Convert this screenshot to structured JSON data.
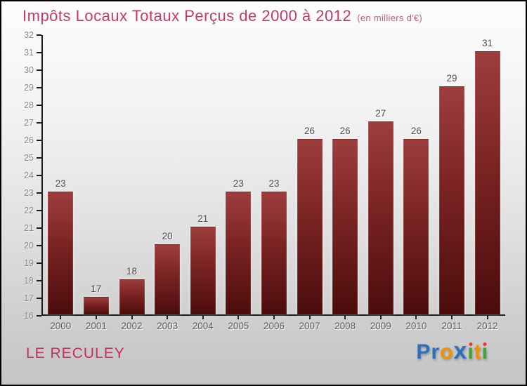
{
  "header": {
    "title": "Impôts Locaux Totaux Perçus de 2000 à 2012",
    "suffix": "(en milliers d'€)"
  },
  "chart_data": {
    "type": "bar",
    "title": "Impôts Locaux Totaux Perçus de 2000 à 2012",
    "subtitle": "(en milliers d'€)",
    "categories": [
      "2000",
      "2001",
      "2002",
      "2003",
      "2004",
      "2005",
      "2006",
      "2007",
      "2008",
      "2009",
      "2010",
      "2011",
      "2012"
    ],
    "values": [
      23,
      17,
      18,
      20,
      21,
      23,
      23,
      26,
      26,
      27,
      26,
      29,
      31
    ],
    "ylim": [
      16,
      32
    ],
    "ytick_step": 1,
    "grid": false,
    "legend": "none",
    "value_labels": true,
    "bar_color_top": "#9e3d3d",
    "bar_color_bottom": "#4c0c0c",
    "axis_color": "#1a1a1a",
    "ytick_label_color": "#8a8a8a",
    "xtick_label_color": "#5e5e5e",
    "value_label_color": "#4d4d4d"
  },
  "footer": {
    "location": "LE RECULEY",
    "logo": {
      "name": "Proxiti",
      "letters": [
        {
          "ch": "P",
          "color": "#2d6fc1"
        },
        {
          "ch": "r",
          "color": "#2d6fc1"
        },
        {
          "ch": "o",
          "color": "#f29100"
        },
        {
          "ch": "x",
          "color": "#2d6fc1",
          "big": true
        },
        {
          "ch": "ı",
          "color": "#3fa434",
          "dot": "#e23b2a"
        },
        {
          "ch": "t",
          "color": "#f29100"
        },
        {
          "ch": "ı",
          "color": "#3fa434",
          "dot": "#e23b2a"
        }
      ]
    }
  },
  "colors": {
    "title": "#c43a67",
    "location": "#c22f62",
    "background_top": "#fdfdfd",
    "background_bottom": "#c5c5c5"
  }
}
